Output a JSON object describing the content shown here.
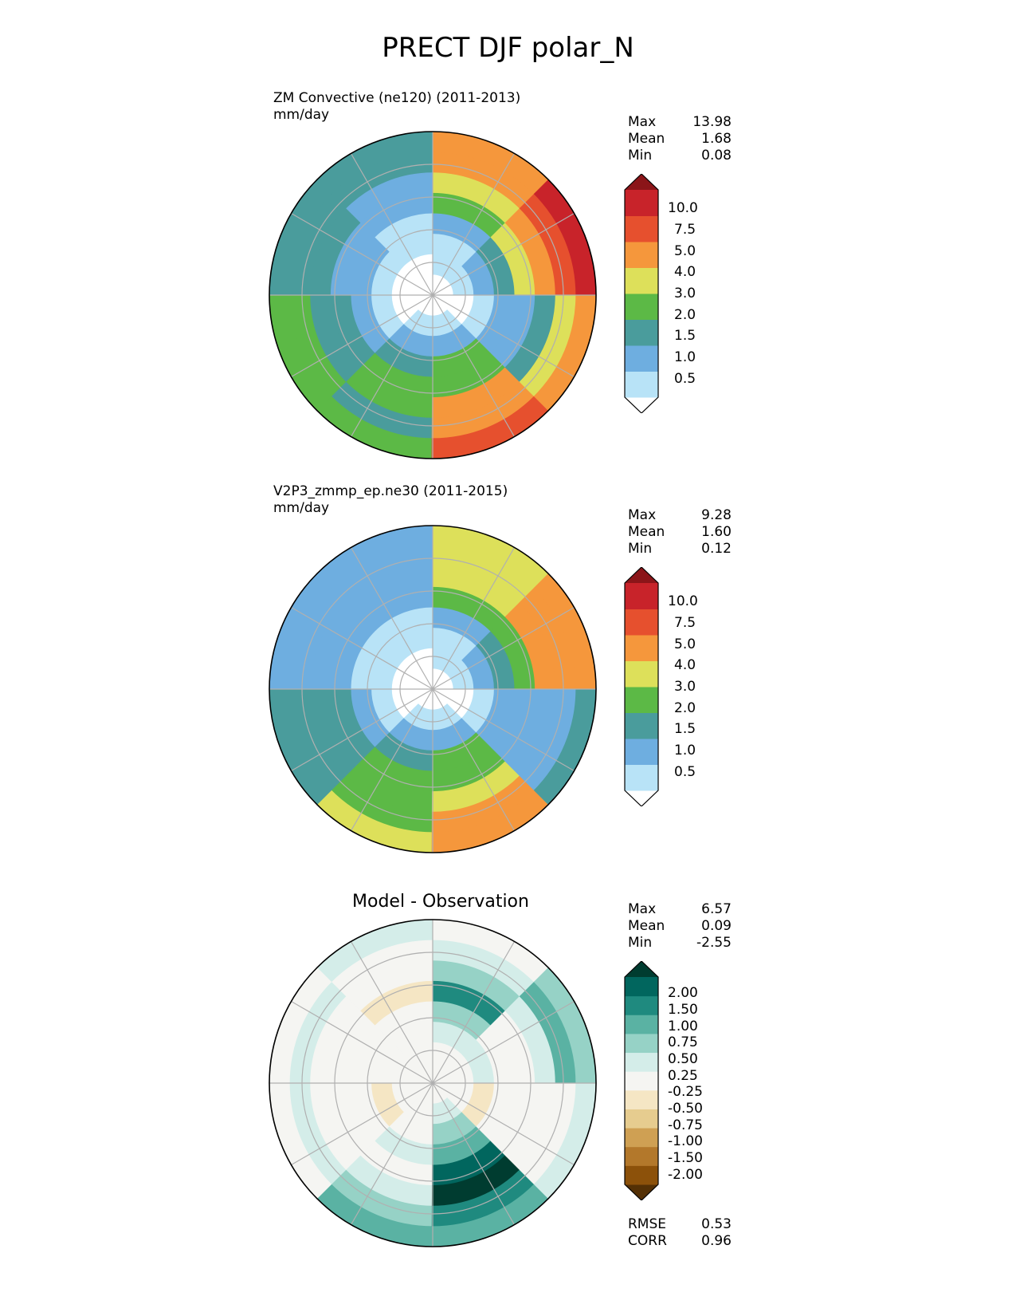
{
  "figure": {
    "title": "PRECT DJF polar_N"
  },
  "chart_data": [
    {
      "type": "heatmap",
      "projection": "north-polar-stereographic",
      "title": "ZM Convective (ne120) (2011-2013)",
      "units": "mm/day",
      "stats": [
        {
          "label": "Max",
          "value": "13.98"
        },
        {
          "label": "Mean",
          "value": "1.68"
        },
        {
          "label": "Min",
          "value": "0.08"
        }
      ],
      "colorbar": {
        "extend": "both",
        "levels": [
          "0.5",
          "1.0",
          "1.5",
          "2.0",
          "3.0",
          "4.0",
          "5.0",
          "7.5",
          "10.0"
        ],
        "colors": [
          "#ffffff",
          "#b8e3f7",
          "#6eaee0",
          "#4a9c9c",
          "#5cb946",
          "#dde05a",
          "#f5973c",
          "#e6502e",
          "#c8232a",
          "#8b1519"
        ]
      },
      "sectors": [
        {
          "lon_start": 0,
          "lon_end": 45,
          "levels": [
            0,
            1,
            2,
            3,
            4,
            4,
            3,
            4
          ]
        },
        {
          "lon_start": 45,
          "lon_end": 90,
          "levels": [
            0,
            0,
            1,
            2,
            3,
            3,
            4,
            4
          ]
        },
        {
          "lon_start": 90,
          "lon_end": 135,
          "levels": [
            0,
            0,
            1,
            2,
            2,
            3,
            3,
            3
          ]
        },
        {
          "lon_start": 135,
          "lon_end": 180,
          "levels": [
            0,
            0,
            1,
            1,
            2,
            2,
            3,
            3
          ]
        },
        {
          "lon_start": 180,
          "lon_end": 225,
          "levels": [
            0,
            1,
            1,
            2,
            4,
            5,
            6,
            6
          ]
        },
        {
          "lon_start": 225,
          "lon_end": 270,
          "levels": [
            0,
            1,
            2,
            3,
            5,
            6,
            7,
            8
          ]
        },
        {
          "lon_start": 270,
          "lon_end": 315,
          "levels": [
            0,
            0,
            1,
            2,
            2,
            3,
            5,
            6
          ]
        },
        {
          "lon_start": 315,
          "lon_end": 360,
          "levels": [
            0,
            1,
            2,
            4,
            4,
            6,
            6,
            7
          ]
        }
      ]
    },
    {
      "type": "heatmap",
      "projection": "north-polar-stereographic",
      "title": "V2P3_zmmp_ep.ne30 (2011-2015)",
      "units": "mm/day",
      "stats": [
        {
          "label": "Max",
          "value": "9.28"
        },
        {
          "label": "Mean",
          "value": "1.60"
        },
        {
          "label": "Min",
          "value": "0.12"
        }
      ],
      "colorbar": {
        "extend": "both",
        "levels": [
          "0.5",
          "1.0",
          "1.5",
          "2.0",
          "3.0",
          "4.0",
          "5.0",
          "7.5",
          "10.0"
        ],
        "colors": [
          "#ffffff",
          "#b8e3f7",
          "#6eaee0",
          "#4a9c9c",
          "#5cb946",
          "#dde05a",
          "#f5973c",
          "#e6502e",
          "#c8232a",
          "#8b1519"
        ]
      },
      "sectors": [
        {
          "lon_start": 0,
          "lon_end": 45,
          "levels": [
            0,
            1,
            2,
            3,
            4,
            4,
            4,
            5
          ]
        },
        {
          "lon_start": 45,
          "lon_end": 90,
          "levels": [
            0,
            0,
            1,
            2,
            3,
            3,
            3,
            3
          ]
        },
        {
          "lon_start": 90,
          "lon_end": 135,
          "levels": [
            0,
            0,
            1,
            1,
            2,
            2,
            2,
            2
          ]
        },
        {
          "lon_start": 135,
          "lon_end": 180,
          "levels": [
            0,
            0,
            1,
            1,
            2,
            2,
            2,
            2
          ]
        },
        {
          "lon_start": 180,
          "lon_end": 225,
          "levels": [
            0,
            1,
            1,
            2,
            4,
            5,
            5,
            5
          ]
        },
        {
          "lon_start": 225,
          "lon_end": 270,
          "levels": [
            0,
            1,
            2,
            3,
            4,
            6,
            6,
            6
          ]
        },
        {
          "lon_start": 270,
          "lon_end": 315,
          "levels": [
            0,
            0,
            1,
            2,
            2,
            2,
            2,
            3
          ]
        },
        {
          "lon_start": 315,
          "lon_end": 360,
          "levels": [
            0,
            1,
            2,
            4,
            4,
            5,
            6,
            6
          ]
        }
      ]
    },
    {
      "type": "heatmap",
      "projection": "north-polar-stereographic",
      "title": "Model - Observation",
      "stats": [
        {
          "label": "Max",
          "value": "6.57"
        },
        {
          "label": "Mean",
          "value": "0.09"
        },
        {
          "label": "Min",
          "value": "-2.55"
        }
      ],
      "colorbar": {
        "extend": "both",
        "levels": [
          "-2.00",
          "-1.50",
          "-1.00",
          "-0.75",
          "-0.50",
          "-0.25",
          "0.25",
          "0.50",
          "0.75",
          "1.00",
          "1.50",
          "2.00"
        ],
        "colors": [
          "#543005",
          "#8c510a",
          "#b3782b",
          "#cfa053",
          "#e6cc8f",
          "#f5e6c4",
          "#f5f5f2",
          "#d4ede9",
          "#96d2c6",
          "#5ab2a3",
          "#1f8a7f",
          "#01665e",
          "#003c30"
        ]
      },
      "sectors": [
        {
          "lon_start": 0,
          "lon_end": 45,
          "levels": [
            6,
            6,
            6,
            7,
            6,
            7,
            8,
            9
          ]
        },
        {
          "lon_start": 45,
          "lon_end": 90,
          "levels": [
            6,
            6,
            5,
            6,
            6,
            6,
            7,
            6
          ]
        },
        {
          "lon_start": 90,
          "lon_end": 135,
          "levels": [
            6,
            6,
            6,
            6,
            6,
            6,
            7,
            6
          ]
        },
        {
          "lon_start": 135,
          "lon_end": 180,
          "levels": [
            6,
            6,
            6,
            6,
            5,
            6,
            6,
            7
          ]
        },
        {
          "lon_start": 180,
          "lon_end": 225,
          "levels": [
            6,
            6,
            7,
            8,
            10,
            8,
            7,
            6
          ]
        },
        {
          "lon_start": 225,
          "lon_end": 270,
          "levels": [
            6,
            6,
            7,
            6,
            6,
            7,
            9,
            8
          ]
        },
        {
          "lon_start": 270,
          "lon_end": 315,
          "levels": [
            6,
            6,
            5,
            6,
            6,
            6,
            6,
            7
          ]
        },
        {
          "lon_start": 315,
          "lon_end": 360,
          "levels": [
            6,
            7,
            8,
            9,
            11,
            12,
            10,
            9
          ]
        }
      ],
      "metrics": [
        {
          "label": "RMSE",
          "value": "0.53"
        },
        {
          "label": "CORR",
          "value": "0.96"
        }
      ]
    }
  ]
}
